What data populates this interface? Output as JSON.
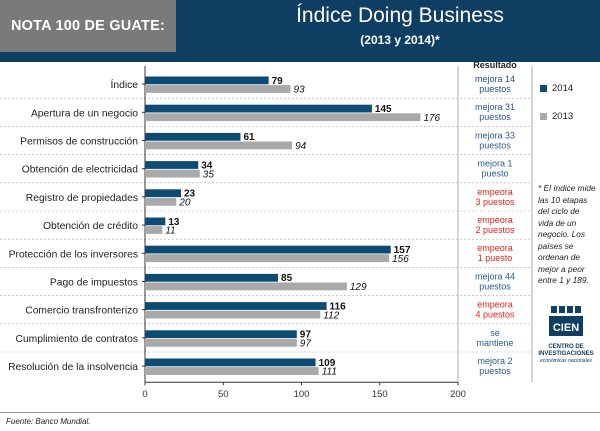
{
  "header": {
    "badge": "NOTA 100 DE GUATE:",
    "title": "Índice Doing Business",
    "subtitle": "(2013 y 2014)*"
  },
  "chart_data": {
    "type": "bar",
    "orientation": "horizontal",
    "title": "Índice Doing Business",
    "subtitle": "(2013 y 2014)*",
    "categories": [
      "Índice",
      "Apertura de un negocio",
      "Permisos de construcción",
      "Obtención de electricidad",
      "Registro de propiedades",
      "Obtención de crédito",
      "Protección de los inversores",
      "Pago de impuestos",
      "Comercio transfronterizo",
      "Cumplimiento de contratos",
      "Resolución de la insolvencia"
    ],
    "series": [
      {
        "name": "2014",
        "color": "#0e4b73",
        "values": [
          79,
          145,
          61,
          34,
          23,
          13,
          157,
          85,
          116,
          97,
          109
        ]
      },
      {
        "name": "2013",
        "color": "#a9a9a9",
        "values": [
          93,
          176,
          94,
          35,
          20,
          11,
          156,
          129,
          112,
          97,
          111
        ]
      }
    ],
    "xlim": [
      0,
      200
    ],
    "xticks": [
      "0",
      "50",
      "100",
      "150",
      "200"
    ],
    "xlabel": "",
    "ylabel": "",
    "grid": false,
    "legend": "right"
  },
  "results": {
    "header": "Resultado",
    "items": [
      {
        "line1": "mejora 14",
        "line2": "puestos",
        "color": "#1f4e8c"
      },
      {
        "line1": "mejora 31",
        "line2": "puestos",
        "color": "#2a5a93"
      },
      {
        "line1": "mejora 33",
        "line2": "puestos",
        "color": "#2a5a93"
      },
      {
        "line1": "mejora 1",
        "line2": "puesto",
        "color": "#2a5a93"
      },
      {
        "line1": "empeora",
        "line2": "3 puestos",
        "color": "#e2231a"
      },
      {
        "line1": "empeora",
        "line2": "2 puestos",
        "color": "#e2231a"
      },
      {
        "line1": "empeora",
        "line2": "1 puesto",
        "color": "#e2231a"
      },
      {
        "line1": "mejora 44",
        "line2": "puestos",
        "color": "#2a5a93"
      },
      {
        "line1": "empeora",
        "line2": "4 puestos",
        "color": "#e2231a"
      },
      {
        "line1": "se",
        "line2": "mantiene",
        "color": "#2a5a93"
      },
      {
        "line1": "mejora 2",
        "line2": "puestos",
        "color": "#2a5a93"
      }
    ]
  },
  "note": "* El índice mide las 10 etapas del ciclo de vida de un negocio. Los países se ordenan de mejor a peor entre 1 y 189.",
  "logo": {
    "wordmark": "CIEN",
    "name": "CENTRO DE INVESTIGACIONES",
    "subtitle": "económicas nacionales"
  },
  "footer": {
    "source": "Fuente:  Banco Mundial."
  }
}
